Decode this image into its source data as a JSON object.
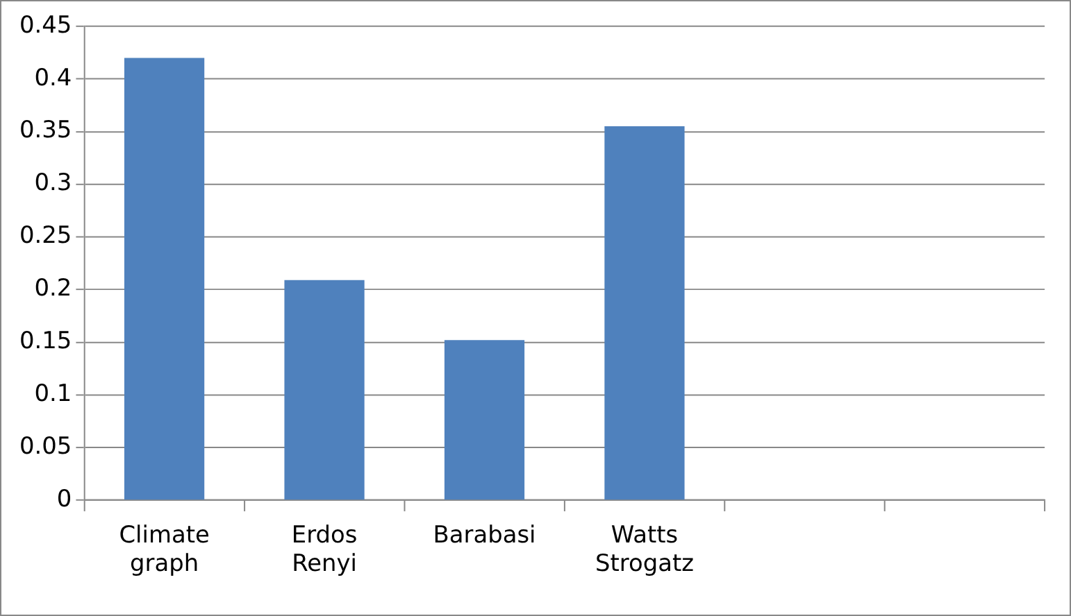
{
  "chart_data": {
    "type": "bar",
    "categories": [
      "Climate\ngraph",
      "Erdos\nRenyi",
      "Barabasi",
      "Watts\nStrogatz",
      null,
      null
    ],
    "values": [
      0.42,
      0.209,
      0.152,
      0.355,
      null,
      null
    ],
    "color": "#4f81bd",
    "ylim": [
      0,
      0.45
    ],
    "yticks": [
      0,
      0.05,
      0.1,
      0.15,
      0.2,
      0.25,
      0.3,
      0.35,
      0.4,
      0.45
    ],
    "grid": "y",
    "legend": false
  }
}
